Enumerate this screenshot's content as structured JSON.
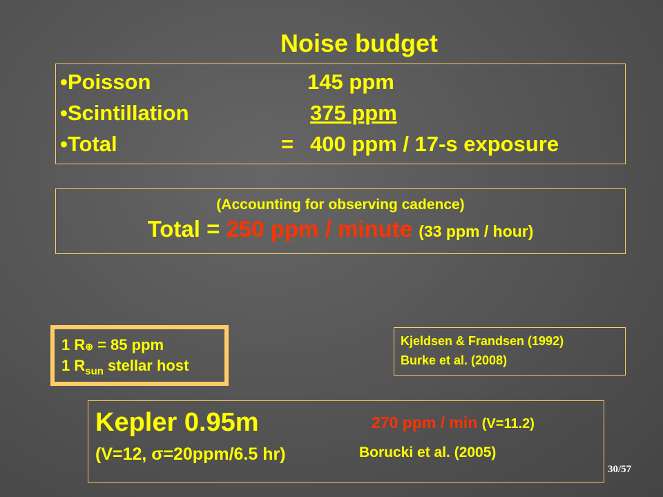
{
  "title": "Noise budget",
  "budget": [
    {
      "label": "•Poisson",
      "value": "145 ppm"
    },
    {
      "label": "•Scintillation",
      "value": "375 ppm"
    },
    {
      "label": "•Total",
      "eq": "=",
      "value": "400 ppm / 17-s exposure"
    }
  ],
  "cadence": {
    "note": "(Accounting for observing cadence)",
    "total_label": "Total = ",
    "total_value": "250 ppm / minute",
    "per_hour": "(33 ppm / hour)"
  },
  "earth_box": {
    "line1_prefix": "1 R",
    "line1_symbol": "⊕",
    "line1_suffix": " = 85 ppm",
    "line2_prefix": "1 R",
    "line2_sub": "sun",
    "line2_suffix": " stellar host"
  },
  "refs": [
    "Kjeldsen & Frandsen (1992)",
    "Burke et al. (2008)"
  ],
  "kepler": {
    "name": "Kepler 0.95m",
    "rate": "270 ppm / min",
    "mag": "(V=11.2)",
    "params": "(V=12, σ=20ppm/6.5 hr)",
    "ref": "Borucki et al. (2005)"
  },
  "page_number": "30/57",
  "colors": {
    "text": "#ffff00",
    "highlight": "#ff3300",
    "border": "#ffcc66"
  }
}
